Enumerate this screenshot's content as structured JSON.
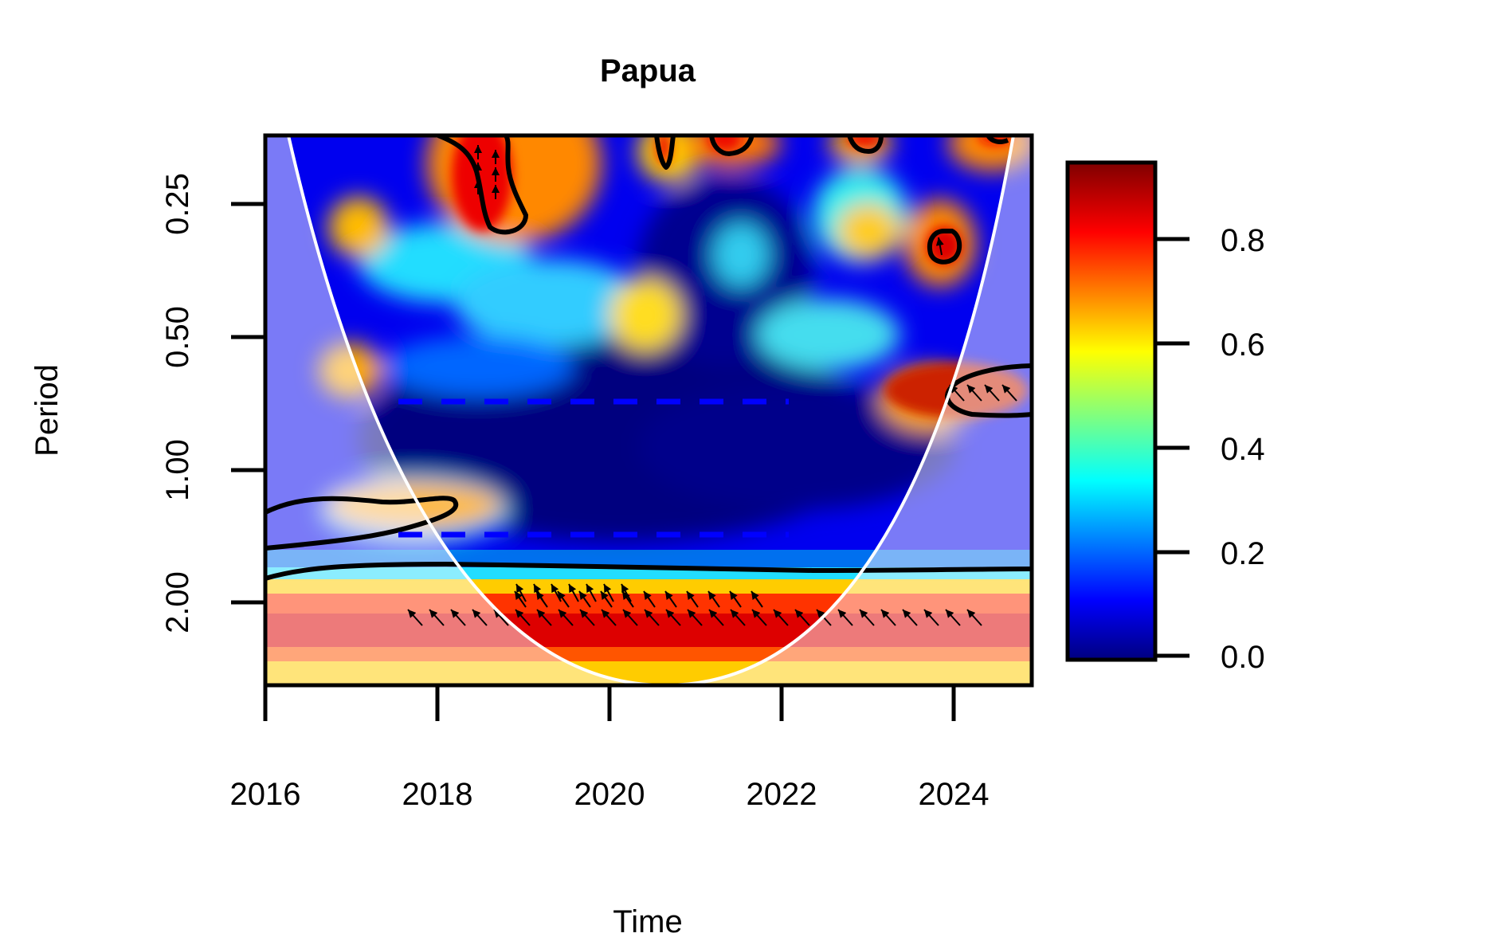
{
  "chart_data": {
    "type": "heatmap",
    "subtype": "wavelet-coherence",
    "title": "Papua",
    "xlabel": "Time",
    "ylabel": "Period",
    "xlim": [
      2016,
      2024.9
    ],
    "ylim": [
      0.15,
      3.4
    ],
    "y_scale": "log2",
    "y_reversed": true,
    "x_ticks": [
      "2016",
      "2018",
      "2020",
      "2022",
      "2024"
    ],
    "x_tick_values": [
      2016,
      2018,
      2020,
      2022,
      2024
    ],
    "y_ticks": [
      "0.25",
      "0.50",
      "1.00",
      "2.00"
    ],
    "y_tick_values": [
      0.25,
      0.5,
      1.0,
      2.0
    ],
    "colorbar": {
      "min": 0.0,
      "max": 0.95,
      "ticks": [
        "0.0",
        "0.2",
        "0.4",
        "0.6",
        "0.8"
      ],
      "tick_values": [
        0.0,
        0.2,
        0.4,
        0.6,
        0.8
      ],
      "colormap": "jet"
    },
    "colors": {
      "cone_of_influence": "#ffffff",
      "significance_contour": "#000000",
      "ridge_dashes": "#0000ff",
      "background": "#ffffff"
    },
    "significant_regions": [
      {
        "x": [
          2018.1,
          2018.8
        ],
        "period": [
          0.15,
          0.27
        ],
        "coherence": 0.9
      },
      {
        "x": [
          2020.6,
          2020.7
        ],
        "period": [
          0.15,
          0.18
        ],
        "coherence": 0.85
      },
      {
        "x": [
          2021.1,
          2021.5
        ],
        "period": [
          0.15,
          0.18
        ],
        "coherence": 0.85
      },
      {
        "x": [
          2022.8,
          2023.2
        ],
        "period": [
          0.15,
          0.18
        ],
        "coherence": 0.85
      },
      {
        "x": [
          2023.8,
          2024.2
        ],
        "period": [
          0.31,
          0.37
        ],
        "coherence": 0.85
      },
      {
        "x": [
          2024.0,
          2024.9
        ],
        "period": [
          0.57,
          0.75
        ],
        "coherence": 0.88
      },
      {
        "x": [
          2016.0,
          2018.2
        ],
        "period": [
          1.2,
          1.75
        ],
        "coherence": 0.72
      },
      {
        "x": [
          2016.0,
          2024.9
        ],
        "period": [
          1.8,
          3.4
        ],
        "coherence": 0.88
      }
    ],
    "ridges": [
      {
        "period": 0.7,
        "x": [
          2017.5,
          2022.0
        ]
      },
      {
        "period": 1.5,
        "x": [
          2017.5,
          2022.0
        ]
      }
    ]
  }
}
